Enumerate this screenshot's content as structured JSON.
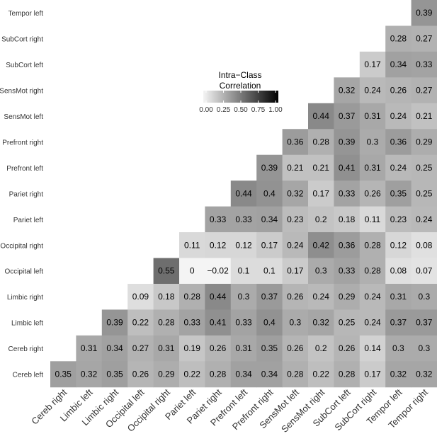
{
  "chart_data": {
    "type": "heatmap",
    "title": "",
    "xlabel": "",
    "ylabel": "",
    "x_categories": [
      "Cereb right",
      "Limbic left",
      "Limbic right",
      "Occipital left",
      "Occipital right",
      "Pariet left",
      "Pariet right",
      "Prefront left",
      "Prefront right",
      "SensMot left",
      "SensMot right",
      "SubCort left",
      "SubCort right",
      "Tempor left",
      "Tempor right"
    ],
    "y_categories": [
      "Cereb left",
      "Cereb right",
      "Limbic left",
      "Limbic right",
      "Occipital left",
      "Occipital right",
      "Pariet left",
      "Pariet right",
      "Prefront left",
      "Prefront right",
      "SensMot left",
      "SensMot right",
      "SubCort left",
      "SubCort right",
      "Tempor left"
    ],
    "cells": [
      {
        "row": "Tempor left",
        "values": [
          "",
          "",
          "",
          "",
          "",
          "",
          "",
          "",
          "",
          "",
          "",
          "",
          "",
          "",
          "0.39"
        ]
      },
      {
        "row": "SubCort right",
        "values": [
          "",
          "",
          "",
          "",
          "",
          "",
          "",
          "",
          "",
          "",
          "",
          "",
          "",
          "0.28",
          "0.27"
        ]
      },
      {
        "row": "SubCort left",
        "values": [
          "",
          "",
          "",
          "",
          "",
          "",
          "",
          "",
          "",
          "",
          "",
          "",
          "0.17",
          "0.34",
          "0.33"
        ]
      },
      {
        "row": "SensMot right",
        "values": [
          "",
          "",
          "",
          "",
          "",
          "",
          "",
          "",
          "",
          "",
          "",
          "0.32",
          "0.24",
          "0.26",
          "0.27"
        ]
      },
      {
        "row": "SensMot left",
        "values": [
          "",
          "",
          "",
          "",
          "",
          "",
          "",
          "",
          "",
          "",
          "0.44",
          "0.37",
          "0.31",
          "0.24",
          "0.21"
        ]
      },
      {
        "row": "Prefront right",
        "values": [
          "",
          "",
          "",
          "",
          "",
          "",
          "",
          "",
          "",
          "0.36",
          "0.28",
          "0.39",
          "0.3",
          "0.36",
          "0.29"
        ]
      },
      {
        "row": "Prefront left",
        "values": [
          "",
          "",
          "",
          "",
          "",
          "",
          "",
          "",
          "0.39",
          "0.21",
          "0.21",
          "0.41",
          "0.31",
          "0.24",
          "0.25"
        ]
      },
      {
        "row": "Pariet right",
        "values": [
          "",
          "",
          "",
          "",
          "",
          "",
          "",
          "0.44",
          "0.4",
          "0.32",
          "0.17",
          "0.33",
          "0.26",
          "0.35",
          "0.25"
        ]
      },
      {
        "row": "Pariet left",
        "values": [
          "",
          "",
          "",
          "",
          "",
          "",
          "0.33",
          "0.33",
          "0.34",
          "0.23",
          "0.2",
          "0.18",
          "0.11",
          "0.23",
          "0.24"
        ]
      },
      {
        "row": "Occipital right",
        "values": [
          "",
          "",
          "",
          "",
          "",
          "0.11",
          "0.12",
          "0.12",
          "0.17",
          "0.24",
          "0.42",
          "0.36",
          "0.28",
          "0.12",
          "0.08"
        ]
      },
      {
        "row": "Occipital left",
        "values": [
          "",
          "",
          "",
          "",
          "0.55",
          "0",
          "−0.02",
          "0.1",
          "0.1",
          "0.17",
          "0.3",
          "0.33",
          "0.28",
          "0.08",
          "0.07"
        ]
      },
      {
        "row": "Limbic right",
        "values": [
          "",
          "",
          "",
          "0.09",
          "0.18",
          "0.28",
          "0.44",
          "0.3",
          "0.37",
          "0.26",
          "0.24",
          "0.29",
          "0.24",
          "0.31",
          "0.3"
        ]
      },
      {
        "row": "Limbic left",
        "values": [
          "",
          "",
          "0.39",
          "0.22",
          "0.28",
          "0.33",
          "0.41",
          "0.33",
          "0.4",
          "0.3",
          "0.32",
          "0.25",
          "0.24",
          "0.37",
          "0.37"
        ]
      },
      {
        "row": "Cereb right",
        "values": [
          "",
          "0.31",
          "0.34",
          "0.27",
          "0.31",
          "0.19",
          "0.26",
          "0.31",
          "0.35",
          "0.26",
          "0.2",
          "0.26",
          "0.14",
          "0.3",
          "0.3"
        ]
      },
      {
        "row": "Cereb left",
        "values": [
          "0.35",
          "0.32",
          "0.35",
          "0.26",
          "0.29",
          "0.22",
          "0.28",
          "0.34",
          "0.34",
          "0.28",
          "0.22",
          "0.28",
          "0.17",
          "0.32",
          "0.32"
        ]
      }
    ],
    "legend": {
      "title_lines": [
        "Intra−Class",
        "Correlation"
      ],
      "ticks": [
        "0.00",
        "0.25",
        "0.50",
        "0.75",
        "1.00"
      ],
      "range": [
        0,
        1
      ],
      "color_low": "#f4f4f4",
      "color_high": "#000000"
    },
    "grid": false,
    "legend_placement": "inside-top-center",
    "colors": {
      "background": "#ffffff",
      "label_text": "#333333",
      "cell_text_dark": "#000000"
    }
  }
}
